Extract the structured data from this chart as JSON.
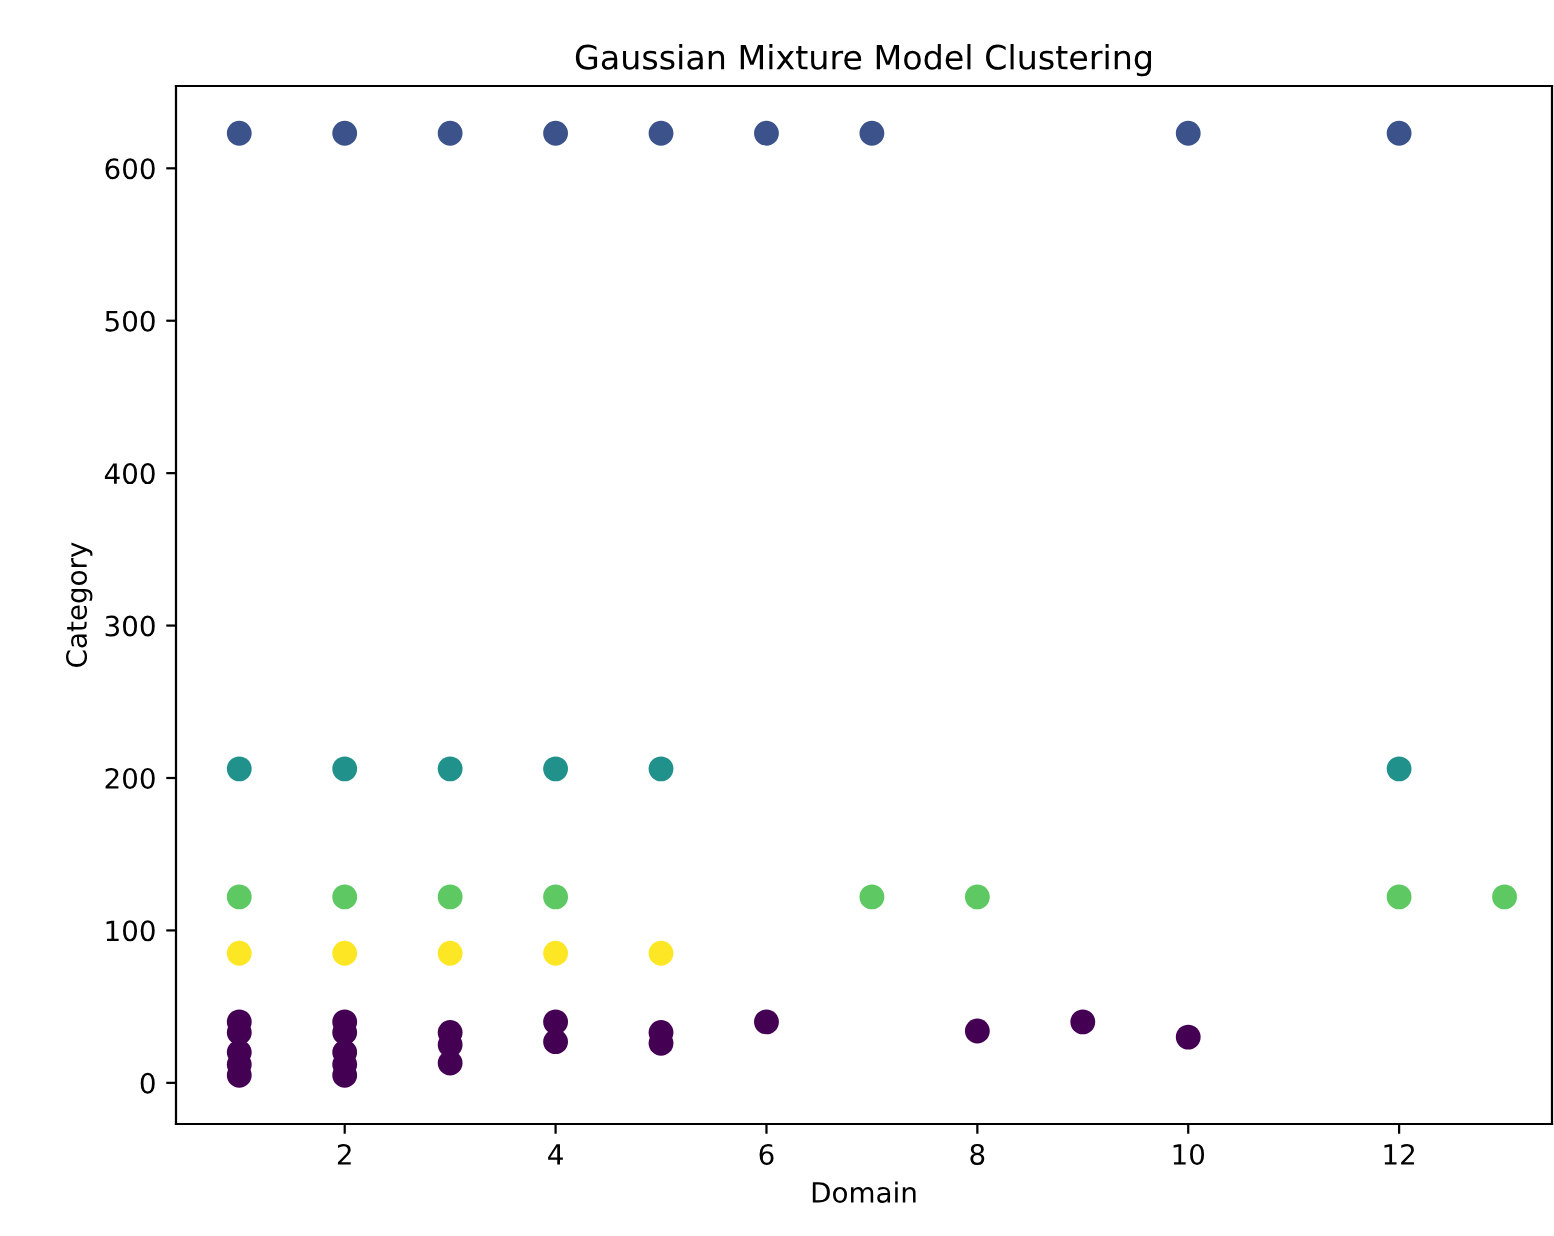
{
  "chart_data": {
    "type": "scatter",
    "title": "Gaussian Mixture Model Clustering",
    "xlabel": "Domain",
    "ylabel": "Category",
    "xlim": [
      0.4,
      13.45
    ],
    "ylim": [
      -27,
      654
    ],
    "xticks": [
      2,
      4,
      6,
      8,
      10,
      12
    ],
    "yticks": [
      0,
      100,
      200,
      300,
      400,
      500,
      600
    ],
    "grid": false,
    "marker": "circle",
    "series": [
      {
        "color": "#440154",
        "x": [
          1,
          1,
          1,
          1,
          1,
          2,
          2,
          2,
          2,
          2,
          3,
          3,
          3,
          4,
          4,
          5,
          5,
          6,
          8,
          9,
          10
        ],
        "values": [
          5,
          12,
          20,
          33,
          40,
          5,
          12,
          20,
          33,
          40,
          13,
          25,
          33,
          27,
          40,
          26,
          33,
          40,
          34,
          40,
          30
        ]
      },
      {
        "color": "#3b528b",
        "x": [
          1,
          2,
          3,
          4,
          5,
          6,
          7,
          10,
          12
        ],
        "values": [
          623,
          623,
          623,
          623,
          623,
          623,
          623,
          623,
          623
        ]
      },
      {
        "color": "#21918c",
        "x": [
          1,
          2,
          3,
          4,
          5,
          12
        ],
        "values": [
          206,
          206,
          206,
          206,
          206,
          206
        ]
      },
      {
        "color": "#5ec962",
        "x": [
          1,
          2,
          3,
          4,
          7,
          8,
          12,
          13
        ],
        "values": [
          122,
          122,
          122,
          122,
          122,
          122,
          122,
          122
        ]
      },
      {
        "color": "#fde725",
        "x": [
          1,
          2,
          3,
          4,
          5
        ],
        "values": [
          85,
          85,
          85,
          85,
          85
        ]
      }
    ]
  }
}
